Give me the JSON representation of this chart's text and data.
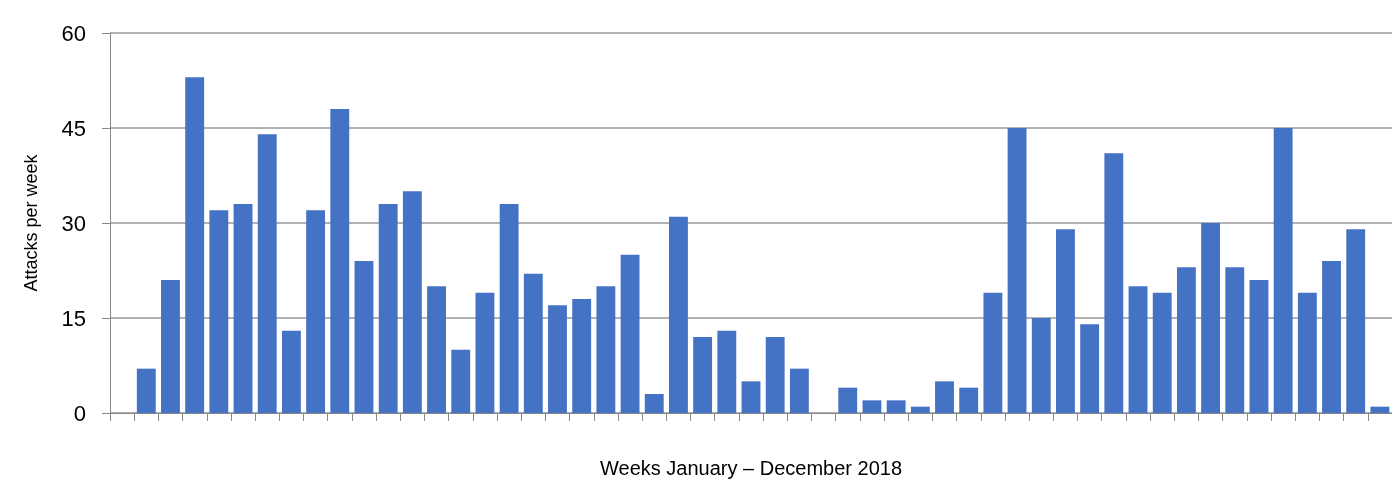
{
  "chart_data": {
    "type": "bar",
    "xlabel": "Weeks January – December 2018",
    "ylabel": "Attacks per week",
    "categories": [
      null,
      null,
      null,
      null,
      null,
      null,
      null,
      null,
      null,
      null,
      null,
      null,
      null,
      null,
      null,
      null,
      null,
      null,
      null,
      null,
      null,
      null,
      null,
      null,
      null,
      null,
      null,
      null,
      null,
      null,
      null,
      null,
      null,
      null,
      null,
      null,
      null,
      null,
      null,
      null,
      null,
      null,
      null,
      null,
      null,
      null,
      null,
      null,
      null,
      null,
      null,
      null,
      null
    ],
    "values": [
      0,
      7,
      21,
      53,
      32,
      33,
      44,
      13,
      32,
      48,
      24,
      33,
      35,
      20,
      10,
      19,
      33,
      22,
      17,
      18,
      20,
      25,
      3,
      31,
      12,
      13,
      5,
      12,
      7,
      0,
      4,
      2,
      2,
      1,
      5,
      4,
      19,
      45,
      15,
      29,
      14,
      41,
      20,
      19,
      23,
      30,
      23,
      21,
      45,
      19,
      24,
      29,
      1
    ],
    "color": "#4472c4",
    "ylim": [
      0,
      60
    ],
    "yticks": [
      0,
      15,
      30,
      45,
      60
    ],
    "grid": "y"
  }
}
